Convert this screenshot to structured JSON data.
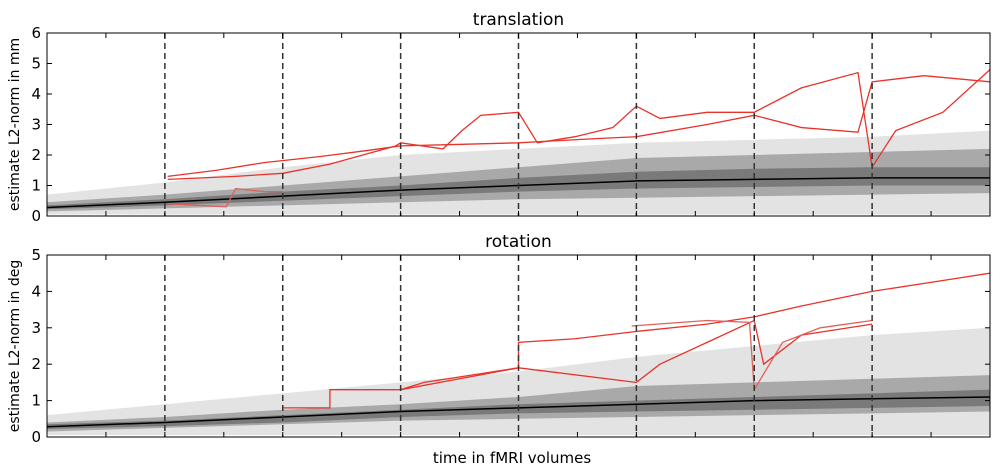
{
  "xlabel": "time in fMRI volumes",
  "chart_data": [
    {
      "type": "line",
      "title": "translation",
      "ylabel": "estimate L2-norm in mm",
      "ylim": [
        0,
        6
      ],
      "yticks": [
        0,
        1,
        2,
        3,
        4,
        5,
        6
      ],
      "xlim": [
        0,
        1
      ],
      "grid": false,
      "segment_boundaries": [
        0.125,
        0.25,
        0.375,
        0.5,
        0.625,
        0.75,
        0.875
      ],
      "colors": {
        "light_band": "#e3e3e3",
        "mid_band": "#a9a9a9",
        "dark_band": "#7a7a7a",
        "median": "#000000",
        "outlier": "#e8332a",
        "outlier_alt": "#e0605a",
        "boundary": "#333333"
      },
      "bands": {
        "x": [
          0,
          0.125,
          0.25,
          0.375,
          0.5,
          0.625,
          0.75,
          0.875,
          1
        ],
        "outer_low": [
          0.05,
          0.05,
          0.05,
          0.05,
          0.05,
          0.05,
          0.05,
          0.05,
          0.05
        ],
        "outer_high": [
          0.7,
          1.1,
          1.6,
          2.0,
          2.2,
          2.4,
          2.5,
          2.6,
          2.8
        ],
        "mid_low": [
          0.15,
          0.25,
          0.35,
          0.45,
          0.55,
          0.6,
          0.65,
          0.7,
          0.75
        ],
        "mid_high": [
          0.45,
          0.7,
          1.0,
          1.3,
          1.6,
          1.9,
          2.0,
          2.1,
          2.2
        ],
        "inner_low": [
          0.22,
          0.35,
          0.5,
          0.65,
          0.8,
          0.9,
          0.95,
          1.0,
          1.0
        ],
        "inner_high": [
          0.35,
          0.55,
          0.8,
          1.0,
          1.25,
          1.45,
          1.55,
          1.6,
          1.6
        ],
        "median": [
          0.28,
          0.45,
          0.65,
          0.85,
          1.0,
          1.15,
          1.2,
          1.25,
          1.25
        ]
      },
      "series": [
        {
          "x": [
            0.128,
            0.18,
            0.23,
            0.29,
            0.34,
            0.375,
            0.44,
            0.5,
            0.53,
            0.59,
            0.625,
            0.7,
            0.75,
            0.8,
            0.86,
            0.875,
            0.93,
            1.0
          ],
          "y": [
            1.3,
            1.5,
            1.75,
            1.95,
            2.15,
            2.3,
            2.35,
            2.4,
            2.45,
            2.55,
            2.6,
            3.0,
            3.3,
            2.9,
            2.75,
            4.4,
            4.6,
            4.4
          ]
        },
        {
          "x": [
            0.128,
            0.2,
            0.25,
            0.3,
            0.37,
            0.375,
            0.42,
            0.44,
            0.46,
            0.5,
            0.52,
            0.56,
            0.6,
            0.625,
            0.65,
            0.7,
            0.75,
            0.8,
            0.86,
            0.875,
            0.9,
            0.95,
            1.0
          ],
          "y": [
            1.2,
            1.3,
            1.4,
            1.7,
            2.3,
            2.4,
            2.2,
            2.8,
            3.3,
            3.4,
            2.4,
            2.6,
            2.9,
            3.6,
            3.2,
            3.4,
            3.4,
            4.2,
            4.7,
            1.6,
            2.8,
            3.4,
            4.8
          ]
        },
        {
          "x": [
            0.128,
            0.16,
            0.19,
            0.2,
            0.23,
            0.25
          ],
          "y": [
            0.4,
            0.35,
            0.3,
            0.9,
            0.8,
            0.8
          ]
        }
      ]
    },
    {
      "type": "line",
      "title": "rotation",
      "ylabel": "estimate L2-norm in deg",
      "ylim": [
        0,
        5
      ],
      "yticks": [
        0,
        1,
        2,
        3,
        4,
        5
      ],
      "xlim": [
        0,
        1
      ],
      "grid": false,
      "segment_boundaries": [
        0.125,
        0.25,
        0.375,
        0.5,
        0.625,
        0.75,
        0.875
      ],
      "bands": {
        "x": [
          0,
          0.125,
          0.25,
          0.375,
          0.5,
          0.625,
          0.75,
          0.875,
          1
        ],
        "outer_low": [
          0.05,
          0.05,
          0.05,
          0.05,
          0.05,
          0.05,
          0.05,
          0.05,
          0.05
        ],
        "outer_high": [
          0.6,
          0.9,
          1.2,
          1.5,
          1.8,
          2.2,
          2.5,
          2.8,
          3.0
        ],
        "mid_low": [
          0.15,
          0.25,
          0.35,
          0.45,
          0.5,
          0.55,
          0.6,
          0.65,
          0.7
        ],
        "mid_high": [
          0.4,
          0.55,
          0.75,
          0.9,
          1.1,
          1.4,
          1.5,
          1.6,
          1.7
        ],
        "inner_low": [
          0.22,
          0.3,
          0.4,
          0.55,
          0.65,
          0.7,
          0.75,
          0.8,
          0.85
        ],
        "inner_high": [
          0.35,
          0.45,
          0.6,
          0.75,
          0.9,
          1.0,
          1.1,
          1.2,
          1.3
        ],
        "median": [
          0.28,
          0.4,
          0.55,
          0.7,
          0.8,
          0.9,
          1.0,
          1.05,
          1.1
        ]
      },
      "series": [
        {
          "x": [
            0.25,
            0.3,
            0.3,
            0.375,
            0.5,
            0.5,
            0.56,
            0.625,
            0.7,
            0.75,
            0.8,
            0.875,
            0.95,
            1.0
          ],
          "y": [
            0.8,
            0.8,
            1.3,
            1.3,
            1.9,
            2.6,
            2.7,
            2.9,
            3.1,
            3.3,
            3.6,
            4.0,
            4.3,
            4.5
          ]
        },
        {
          "x": [
            0.375,
            0.4,
            0.45,
            0.5,
            0.625,
            0.65,
            0.7,
            0.75,
            0.76,
            0.8,
            0.875
          ],
          "y": [
            1.3,
            1.5,
            1.7,
            1.9,
            1.5,
            2.0,
            2.6,
            3.2,
            2.0,
            2.8,
            3.1
          ]
        },
        {
          "x": [
            0.62,
            0.7,
            0.745,
            0.75,
            0.78,
            0.82,
            0.875
          ],
          "y": [
            3.05,
            3.2,
            3.15,
            1.3,
            2.6,
            3.0,
            3.2
          ]
        }
      ]
    }
  ]
}
